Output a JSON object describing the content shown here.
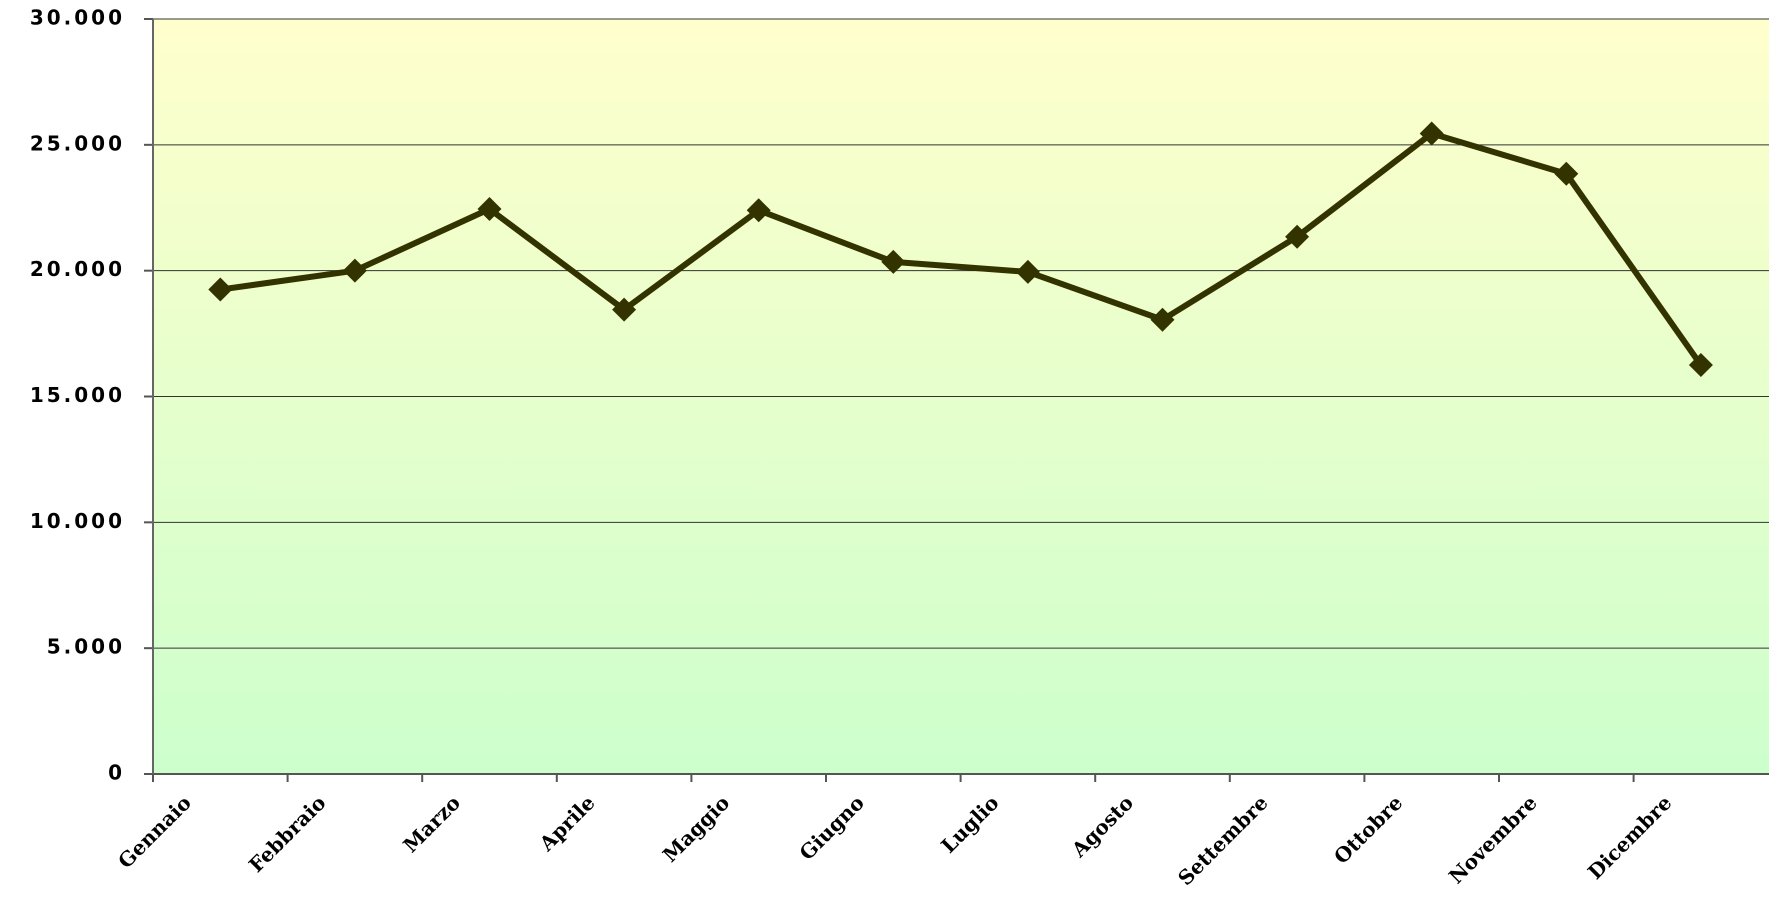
{
  "chart_data": {
    "type": "line",
    "categories": [
      "Gennaio",
      "Febbraio",
      "Marzo",
      "Aprile",
      "Maggio",
      "Giugno",
      "Luglio",
      "Agosto",
      "Settembre",
      "Ottobre",
      "Novembre",
      "Dicembre"
    ],
    "values": [
      19250,
      20000,
      22450,
      18450,
      22400,
      20350,
      19950,
      18050,
      21350,
      25450,
      23850,
      16250
    ],
    "color": "#333300",
    "ylim": [
      0,
      30000
    ],
    "yticks": [
      0,
      {
        "value": 5000,
        "label": "5.000"
      },
      {
        "value": 10000,
        "label": "10.000"
      },
      {
        "value": 15000,
        "label": "15.000"
      },
      {
        "value": 20000,
        "label": "20.000"
      },
      {
        "value": 25000,
        "label": "25.000"
      },
      {
        "value": 30000,
        "label": "30.000"
      }
    ],
    "grid": true
  }
}
